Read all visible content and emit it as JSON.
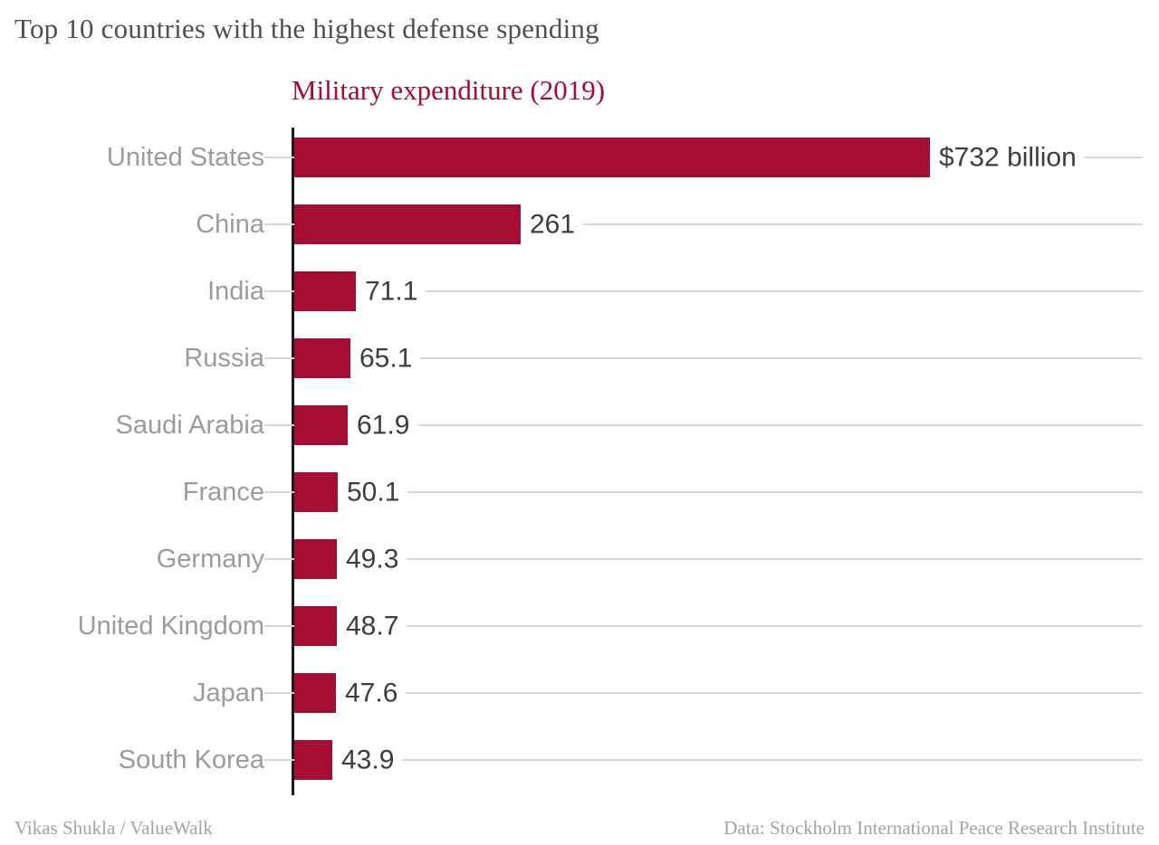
{
  "page": {
    "title": "Top 10 countries with the highest defense spending",
    "subtitle": "Military expenditure (2019)",
    "footer_left": "Vikas Shukla / ValueWalk",
    "footer_right": "Data: Stockholm International Peace Research Institute"
  },
  "colors": {
    "bar": "#a50d32",
    "subtitle": "#a50d32",
    "title": "#4f4f4f",
    "country_label": "#9b9b9b",
    "value_label": "#3d3d3d",
    "gridline": "#d9d9d9",
    "axis": "#1a1a1a"
  },
  "chart_data": {
    "type": "bar",
    "orientation": "horizontal",
    "title": "Military expenditure (2019)",
    "unit": "billion USD",
    "categories": [
      "United States",
      "China",
      "India",
      "Russia",
      "Saudi Arabia",
      "France",
      "Germany",
      "United Kingdom",
      "Japan",
      "South Korea"
    ],
    "values": [
      732,
      261,
      71.1,
      65.1,
      61.9,
      50.1,
      49.3,
      48.7,
      47.6,
      43.9
    ],
    "value_labels": [
      "$732 billion",
      "261",
      "71.1",
      "65.1",
      "61.9",
      "50.1",
      "49.3",
      "48.7",
      "47.6",
      "43.9"
    ],
    "xlim": [
      0,
      763
    ],
    "grid": "horizontal-row-lines",
    "legend": "none"
  }
}
